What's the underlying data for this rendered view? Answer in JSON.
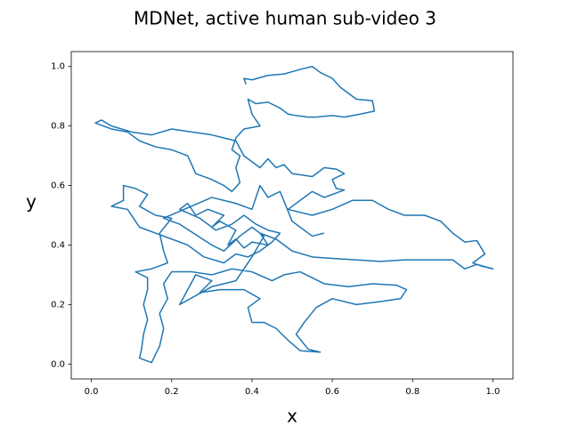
{
  "chart_data": {
    "type": "line",
    "title": "MDNet, active human sub-video 3",
    "x_label": "x",
    "y_label": "y",
    "color": "#1f77b4",
    "xlim": [
      -0.05,
      1.05
    ],
    "ylim": [
      -0.05,
      1.05
    ],
    "xticks": [
      {
        "value": 0,
        "label": "0.0"
      },
      0.2,
      0.4,
      0.6,
      0.8,
      {
        "value": 1,
        "label": "1.0"
      }
    ],
    "yticks": [
      {
        "value": 0,
        "label": "0.0"
      },
      0.2,
      0.4,
      0.6,
      0.8,
      {
        "value": 1,
        "label": "1.0"
      }
    ],
    "x": [
      0.385,
      0.38,
      0.4,
      0.44,
      0.48,
      0.52,
      0.55,
      0.57,
      0.6,
      0.62,
      0.66,
      0.7,
      0.705,
      0.67,
      0.63,
      0.6,
      0.56,
      0.54,
      0.51,
      0.49,
      0.47,
      0.44,
      0.41,
      0.39,
      0.4,
      0.42,
      0.38,
      0.36,
      0.35,
      0.37,
      0.36,
      0.37,
      0.35,
      0.33,
      0.3,
      0.26,
      0.24,
      0.2,
      0.16,
      0.12,
      0.09,
      0.05,
      0.01,
      0.025,
      0.05,
      0.1,
      0.15,
      0.2,
      0.25,
      0.3,
      0.36,
      0.38,
      0.42,
      0.44,
      0.46,
      0.48,
      0.5,
      0.55,
      0.58,
      0.61,
      0.63,
      0.6,
      0.61,
      0.63,
      0.58,
      0.55,
      0.52,
      0.49,
      0.55,
      0.6,
      0.65,
      0.7,
      0.74,
      0.78,
      0.83,
      0.87,
      0.9,
      0.93,
      0.96,
      0.98,
      0.95,
      0.97,
      1.0,
      0.96,
      0.93,
      0.9,
      0.84,
      0.78,
      0.72,
      0.66,
      0.6,
      0.55,
      0.5,
      0.46,
      0.42,
      0.44,
      0.4,
      0.38,
      0.36,
      0.34,
      0.36,
      0.32,
      0.3,
      0.33,
      0.29,
      0.26,
      0.24,
      0.22,
      0.27,
      0.31,
      0.35,
      0.38,
      0.41,
      0.44,
      0.47,
      0.45,
      0.42,
      0.39,
      0.36,
      0.33,
      0.28,
      0.24,
      0.2,
      0.16,
      0.12,
      0.09,
      0.05,
      0.08,
      0.08,
      0.11,
      0.14,
      0.12,
      0.16,
      0.2,
      0.17,
      0.18,
      0.19,
      0.15,
      0.11,
      0.14,
      0.14,
      0.13,
      0.14,
      0.13,
      0.125,
      0.12,
      0.15,
      0.17,
      0.18,
      0.17,
      0.19,
      0.18,
      0.2,
      0.25,
      0.3,
      0.35,
      0.4,
      0.45,
      0.48,
      0.52,
      0.58,
      0.64,
      0.7,
      0.76,
      0.785,
      0.77,
      0.72,
      0.66,
      0.6,
      0.56,
      0.53,
      0.51,
      0.54,
      0.57,
      0.52,
      0.49,
      0.46,
      0.43,
      0.4,
      0.39,
      0.42,
      0.38,
      0.32,
      0.27,
      0.3,
      0.26,
      0.22,
      0.3,
      0.36,
      0.4,
      0.43,
      0.4,
      0.37,
      0.33,
      0.3,
      0.22,
      0.18,
      0.3,
      0.36,
      0.4,
      0.42,
      0.44,
      0.47,
      0.5,
      0.55,
      0.58
    ],
    "values": [
      0.94,
      0.96,
      0.955,
      0.97,
      0.975,
      0.99,
      1.0,
      0.98,
      0.96,
      0.93,
      0.89,
      0.885,
      0.85,
      0.84,
      0.83,
      0.835,
      0.83,
      0.83,
      0.835,
      0.84,
      0.86,
      0.88,
      0.875,
      0.89,
      0.84,
      0.8,
      0.79,
      0.76,
      0.72,
      0.7,
      0.66,
      0.61,
      0.58,
      0.6,
      0.62,
      0.64,
      0.7,
      0.72,
      0.73,
      0.75,
      0.78,
      0.79,
      0.81,
      0.82,
      0.8,
      0.78,
      0.77,
      0.79,
      0.78,
      0.77,
      0.75,
      0.7,
      0.66,
      0.69,
      0.66,
      0.67,
      0.64,
      0.63,
      0.66,
      0.655,
      0.64,
      0.62,
      0.59,
      0.585,
      0.56,
      0.58,
      0.55,
      0.52,
      0.5,
      0.52,
      0.55,
      0.55,
      0.52,
      0.5,
      0.5,
      0.48,
      0.44,
      0.41,
      0.415,
      0.37,
      0.34,
      0.33,
      0.32,
      0.335,
      0.32,
      0.35,
      0.35,
      0.35,
      0.345,
      0.35,
      0.355,
      0.36,
      0.38,
      0.42,
      0.44,
      0.4,
      0.41,
      0.39,
      0.42,
      0.4,
      0.45,
      0.48,
      0.46,
      0.5,
      0.52,
      0.5,
      0.54,
      0.52,
      0.49,
      0.45,
      0.47,
      0.5,
      0.47,
      0.45,
      0.44,
      0.41,
      0.38,
      0.36,
      0.37,
      0.34,
      0.36,
      0.4,
      0.42,
      0.44,
      0.46,
      0.52,
      0.53,
      0.55,
      0.6,
      0.59,
      0.57,
      0.53,
      0.5,
      0.49,
      0.44,
      0.38,
      0.34,
      0.32,
      0.31,
      0.29,
      0.25,
      0.2,
      0.15,
      0.1,
      0.05,
      0.02,
      0.005,
      0.06,
      0.12,
      0.17,
      0.22,
      0.27,
      0.31,
      0.31,
      0.3,
      0.32,
      0.31,
      0.28,
      0.3,
      0.31,
      0.27,
      0.26,
      0.27,
      0.265,
      0.25,
      0.22,
      0.21,
      0.2,
      0.22,
      0.19,
      0.14,
      0.1,
      0.05,
      0.04,
      0.045,
      0.08,
      0.12,
      0.14,
      0.14,
      0.19,
      0.22,
      0.25,
      0.25,
      0.24,
      0.28,
      0.3,
      0.2,
      0.26,
      0.28,
      0.36,
      0.43,
      0.46,
      0.43,
      0.38,
      0.4,
      0.47,
      0.49,
      0.56,
      0.54,
      0.52,
      0.6,
      0.56,
      0.58,
      0.48,
      0.43,
      0.44
    ]
  }
}
